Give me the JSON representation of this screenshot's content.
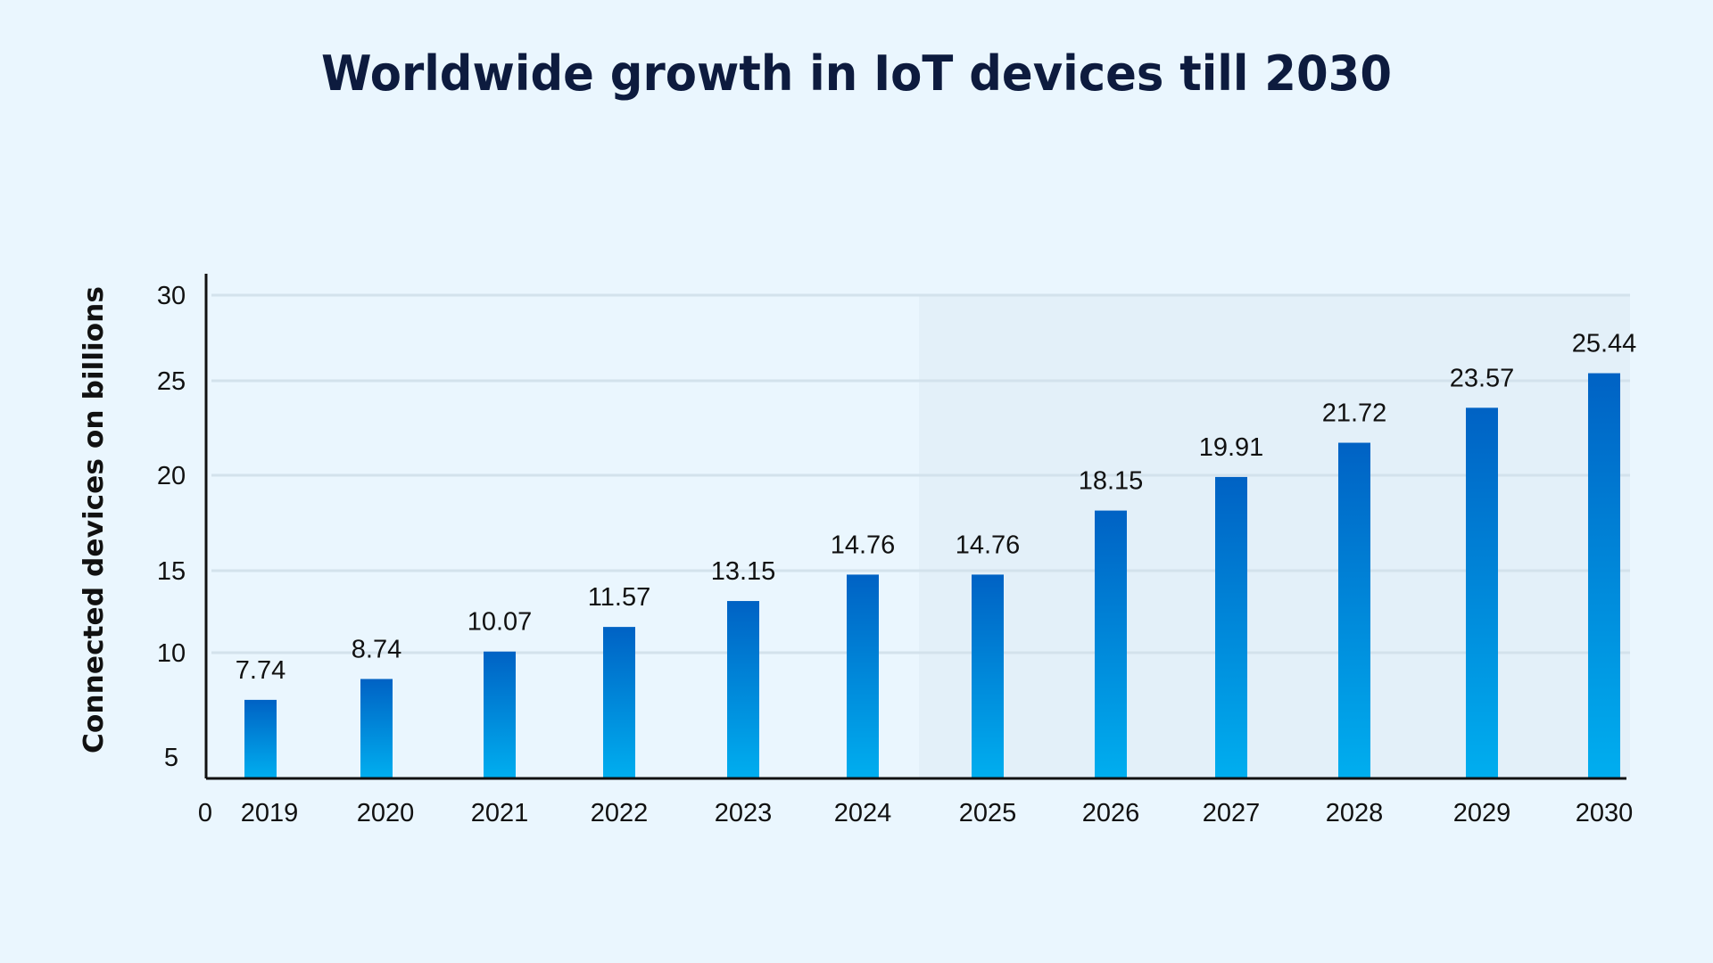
{
  "chart_data": {
    "type": "bar",
    "title": "Worldwide growth in IoT devices till 2030",
    "xlabel": "",
    "ylabel": "Connected devices on billions",
    "categories": [
      "2019",
      "2020",
      "2021",
      "2022",
      "2023",
      "2024",
      "2025",
      "2026",
      "2027",
      "2028",
      "2029",
      "2030"
    ],
    "values": [
      7.74,
      8.74,
      10.07,
      11.57,
      13.15,
      14.76,
      14.76,
      18.15,
      19.91,
      21.72,
      23.57,
      25.44
    ],
    "value_labels": [
      "7.74",
      "8.74",
      "10.07",
      "11.57",
      "13.15",
      "14.76",
      "14.76",
      "18.15",
      "19.91",
      "21.72",
      "23.57",
      "25.44"
    ],
    "y_ticks": [
      "0",
      "5",
      "10",
      "15",
      "20",
      "25",
      "30"
    ],
    "ylim": [
      0,
      30
    ],
    "grid": true,
    "highlighted_range": [
      "2025",
      "2030"
    ],
    "colors": {
      "bar_top": "#0062c4",
      "bar_bottom": "#00aeef",
      "background": "#eaf6fe",
      "highlight": "#e3f0f9",
      "grid": "#d3e2ec"
    }
  }
}
